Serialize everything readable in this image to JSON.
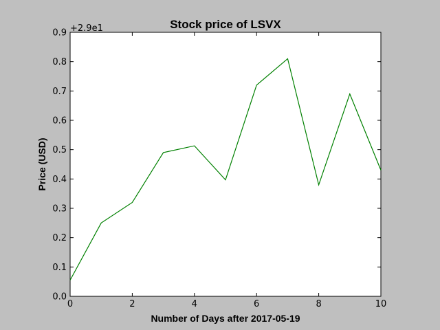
{
  "chart_data": {
    "type": "line",
    "title": "Stock price of LSVX",
    "xlabel": "Number of Days after 2017-05-19",
    "ylabel": "Price (USD)",
    "offset_text": "+2.9e1",
    "xlim": [
      0,
      10
    ],
    "ylim": [
      0.0,
      0.9
    ],
    "x_ticks": [
      "0",
      "2",
      "4",
      "6",
      "8",
      "10"
    ],
    "y_ticks": [
      "0.0",
      "0.1",
      "0.2",
      "0.3",
      "0.4",
      "0.5",
      "0.6",
      "0.7",
      "0.8",
      "0.9"
    ],
    "grid": false,
    "series": [
      {
        "color": "#008000",
        "x": [
          0,
          1,
          2,
          3,
          4,
          5,
          6,
          7,
          8,
          9,
          10
        ],
        "y": [
          0.055,
          0.25,
          0.32,
          0.49,
          0.513,
          0.397,
          0.72,
          0.81,
          0.38,
          0.69,
          0.43
        ]
      }
    ]
  }
}
